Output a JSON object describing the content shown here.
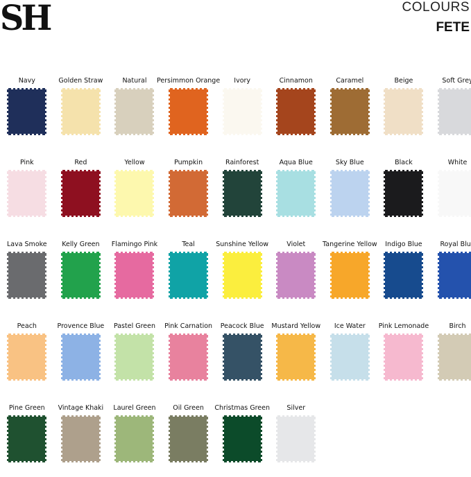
{
  "brand": {
    "logo": "SH"
  },
  "header": {
    "title": "COLOURS",
    "subtitle": "FETE"
  },
  "swatches": [
    {
      "name": "Navy",
      "color": "#1f2f5a"
    },
    {
      "name": "Golden Straw",
      "color": "#f5e2ac"
    },
    {
      "name": "Natural",
      "color": "#d8d0bd"
    },
    {
      "name": "Persimmon Orange",
      "color": "#e0641f"
    },
    {
      "name": "Ivory",
      "color": "#fbf8f0"
    },
    {
      "name": "Cinnamon",
      "color": "#a5451d"
    },
    {
      "name": "Caramel",
      "color": "#9e6c34"
    },
    {
      "name": "Beige",
      "color": "#f0dfc6"
    },
    {
      "name": "Soft Grey",
      "color": "#d8d9dc"
    },
    {
      "name": "Pink",
      "color": "#f6dde3"
    },
    {
      "name": "Red",
      "color": "#8e1020"
    },
    {
      "name": "Yellow",
      "color": "#fdf8ae"
    },
    {
      "name": "Pumpkin",
      "color": "#d26a35"
    },
    {
      "name": "Rainforest",
      "color": "#22443a"
    },
    {
      "name": "Aqua Blue",
      "color": "#a8dfe2"
    },
    {
      "name": "Sky Blue",
      "color": "#bcd3ef"
    },
    {
      "name": "Black",
      "color": "#1b1b1d"
    },
    {
      "name": "White",
      "color": "#f8f8f8"
    },
    {
      "name": "Lava Smoke",
      "color": "#6a6b6e"
    },
    {
      "name": "Kelly Green",
      "color": "#22a24c"
    },
    {
      "name": "Flamingo Pink",
      "color": "#e66aa0"
    },
    {
      "name": "Teal",
      "color": "#10a3a6"
    },
    {
      "name": "Sunshine Yellow",
      "color": "#fbee3e"
    },
    {
      "name": "Violet",
      "color": "#c98ac3"
    },
    {
      "name": "Tangerine Yellow",
      "color": "#f7a72a"
    },
    {
      "name": "Indigo Blue",
      "color": "#174b8e"
    },
    {
      "name": "Royal Blue",
      "color": "#2452ad"
    },
    {
      "name": "Peach",
      "color": "#f9c283"
    },
    {
      "name": "Provence Blue",
      "color": "#8db2e5"
    },
    {
      "name": "Pastel Green",
      "color": "#c3e2a8"
    },
    {
      "name": "Pink Carnation",
      "color": "#e8829e"
    },
    {
      "name": "Peacock Blue",
      "color": "#355266"
    },
    {
      "name": "Mustard Yellow",
      "color": "#f6b848"
    },
    {
      "name": "Ice Water",
      "color": "#c6dfea"
    },
    {
      "name": "Pink Lemonade",
      "color": "#f6b9cf"
    },
    {
      "name": "Birch",
      "color": "#d3cbb5"
    },
    {
      "name": "Pine Green",
      "color": "#1f5130"
    },
    {
      "name": "Vintage Khaki",
      "color": "#aea08c"
    },
    {
      "name": "Laurel Green",
      "color": "#9db77a"
    },
    {
      "name": "Oil Green",
      "color": "#7a7d62"
    },
    {
      "name": "Christmas Green",
      "color": "#0c4b2a"
    },
    {
      "name": "Silver",
      "color": "#e6e7e9"
    }
  ]
}
